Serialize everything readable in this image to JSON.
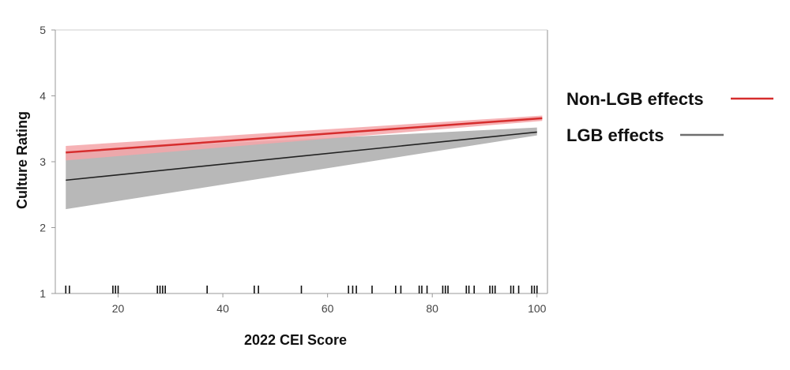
{
  "chart_data": {
    "type": "line",
    "xlabel": "2022 CEI Score",
    "ylabel": "Culture Rating",
    "xlim": [
      8,
      102
    ],
    "ylim": [
      1,
      5
    ],
    "xticks": [
      20,
      40,
      60,
      80,
      100
    ],
    "yticks": [
      1,
      2,
      3,
      4,
      5
    ],
    "legend_position": "right",
    "grid": false,
    "series": [
      {
        "name": "Non-LGB effects",
        "color": "#d62d2d",
        "band_color": "#f4a5a8",
        "x": [
          10,
          101
        ],
        "y": [
          3.14,
          3.66
        ],
        "lower": [
          3.02,
          3.62
        ],
        "upper": [
          3.24,
          3.7
        ]
      },
      {
        "name": "LGB effects",
        "color": "#222222",
        "legend_color": "#6e6e6e",
        "band_color": "#b8b8b8",
        "x": [
          10,
          100
        ],
        "y": [
          2.72,
          3.45
        ],
        "lower": [
          2.28,
          3.4
        ],
        "upper": [
          3.16,
          3.52
        ]
      }
    ],
    "rug_x": [
      10,
      10.7,
      19,
      19.5,
      20,
      27.5,
      28,
      28.5,
      29,
      37,
      46,
      46.8,
      55,
      64,
      64.8,
      65.5,
      68.5,
      73,
      74,
      77.5,
      78,
      79,
      82,
      82.5,
      83,
      86.5,
      87,
      88,
      91,
      91.5,
      92,
      95,
      95.5,
      96.5,
      99,
      99.5,
      100
    ]
  }
}
